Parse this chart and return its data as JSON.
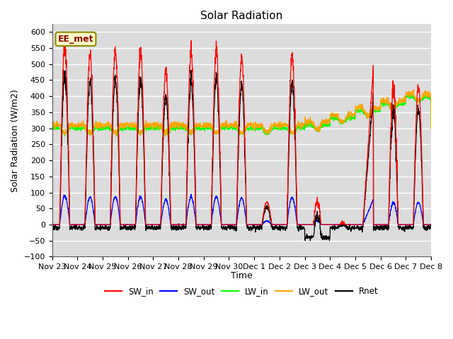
{
  "title": "Solar Radiation",
  "ylabel": "Solar Radiation (W/m2)",
  "xlabel": "Time",
  "annotation": "EE_met",
  "ylim": [
    -100,
    625
  ],
  "yticks": [
    -100,
    -50,
    0,
    50,
    100,
    150,
    200,
    250,
    300,
    350,
    400,
    450,
    500,
    550,
    600
  ],
  "xtick_labels": [
    "Nov 23",
    "Nov 24",
    "Nov 25",
    "Nov 26",
    "Nov 27",
    "Nov 28",
    "Nov 29",
    "Nov 30",
    "Dec 1",
    "Dec 2",
    "Dec 3",
    "Dec 4",
    "Dec 5",
    "Dec 6",
    "Dec 7",
    "Dec 8"
  ],
  "n_days": 15,
  "bg_color": "#dcdcdc",
  "title_fontsize": 11,
  "label_fontsize": 9,
  "tick_fontsize": 8,
  "sw_peaks": [
    560,
    530,
    548,
    540,
    480,
    535,
    548,
    520,
    70,
    530,
    0,
    0,
    490,
    430,
    430,
    0
  ],
  "lw_in_base": 300,
  "lw_out_base": 310
}
